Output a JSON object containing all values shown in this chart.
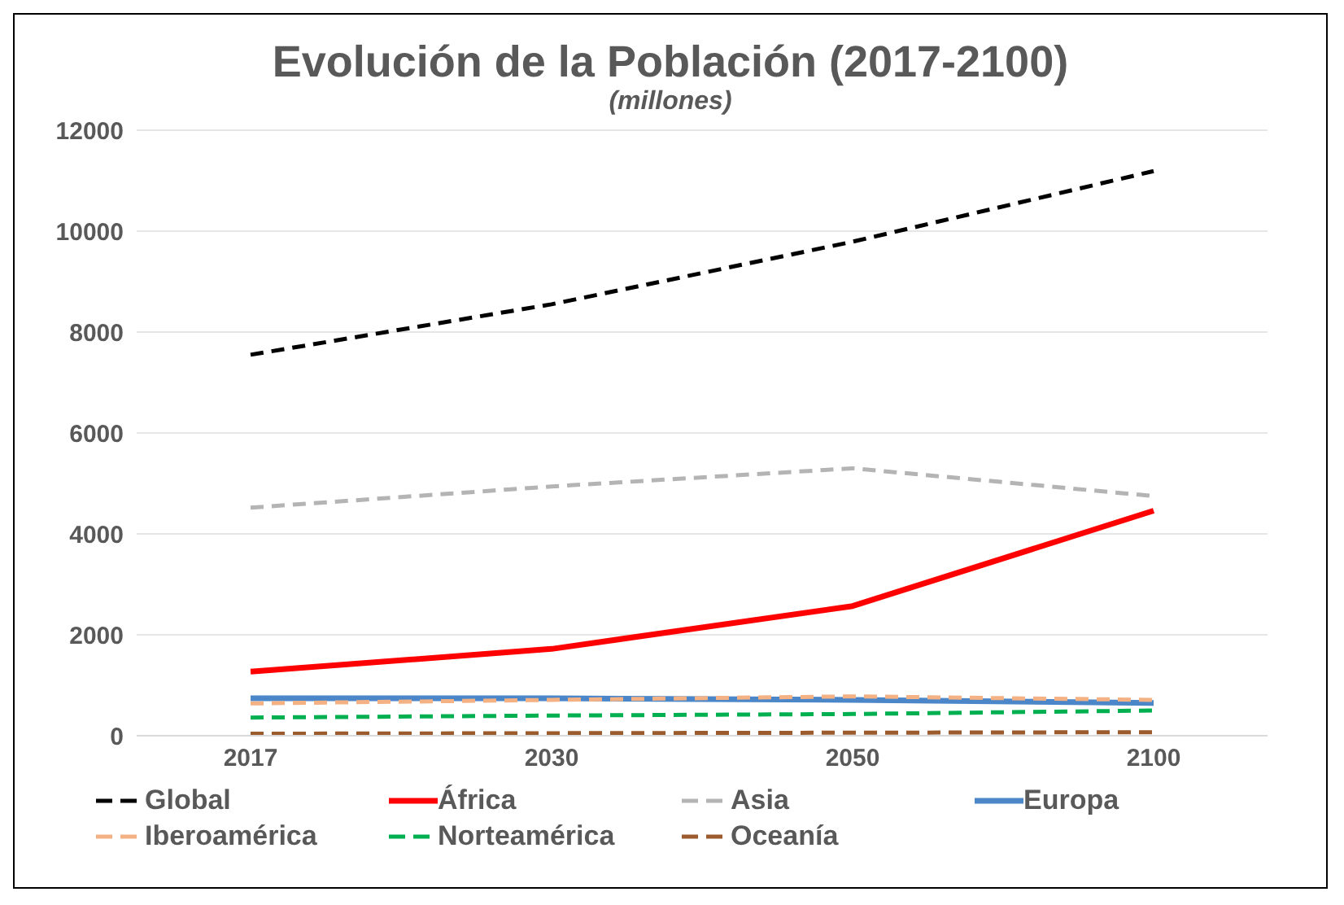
{
  "chart_data": {
    "type": "line",
    "title": "Evolución de la Población (2017-2100)",
    "subtitle": "(millones)",
    "categories": [
      "2017",
      "2030",
      "2050",
      "2100"
    ],
    "ylim": [
      0,
      12000
    ],
    "yticks": [
      0,
      2000,
      4000,
      6000,
      8000,
      10000,
      12000
    ],
    "grid": "y",
    "legend": "bottom",
    "marker": "none",
    "series": [
      {
        "name": "Global",
        "color": "#000000",
        "line_style": "dashed",
        "values": [
          7550,
          8550,
          9790,
          11190
        ]
      },
      {
        "name": "África",
        "color": "#ff0000",
        "line_style": "solid",
        "values": [
          1270,
          1720,
          2570,
          4460
        ]
      },
      {
        "name": "Asia",
        "color": "#b4b4b4",
        "line_style": "dashed",
        "values": [
          4520,
          4940,
          5300,
          4750
        ]
      },
      {
        "name": "Europa",
        "color": "#4a86c8",
        "line_style": "solid",
        "values": [
          740,
          740,
          710,
          650
        ]
      },
      {
        "name": "Iberoamérica",
        "color": "#f4b183",
        "line_style": "dashed",
        "values": [
          640,
          710,
          780,
          710
        ]
      },
      {
        "name": "Norteamérica",
        "color": "#00b050",
        "line_style": "dashed",
        "values": [
          360,
          400,
          430,
          500
        ]
      },
      {
        "name": "Oceanía",
        "color": "#9c5b2c",
        "line_style": "dashed",
        "values": [
          40,
          50,
          60,
          70
        ]
      }
    ]
  }
}
